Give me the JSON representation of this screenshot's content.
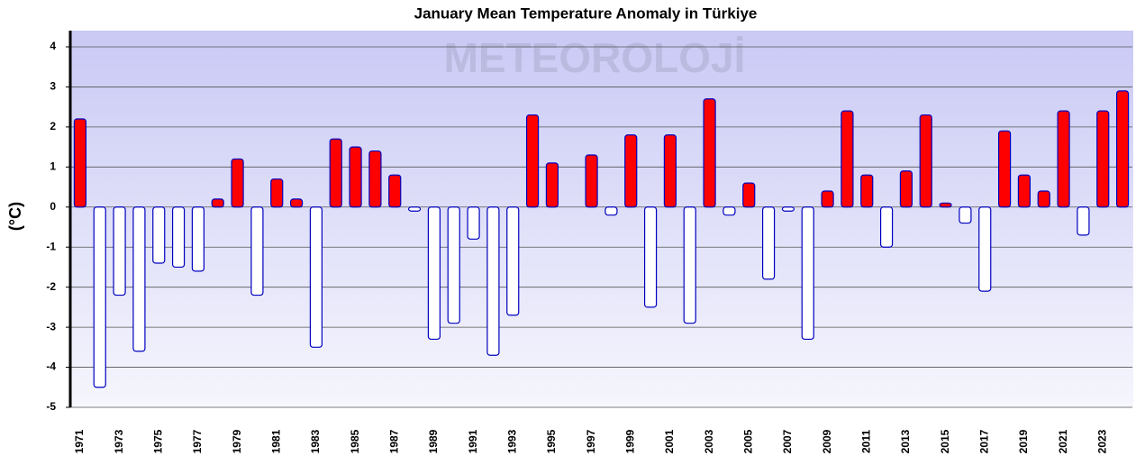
{
  "chart_data": {
    "type": "bar",
    "title": "January Mean Temperature Anomaly in Türkiye",
    "y_label": "(°C)",
    "watermark": "METEOROLOJİ",
    "categories": [
      "1971",
      null,
      "1973",
      null,
      "1975",
      null,
      "1977",
      null,
      "1979",
      null,
      "1981",
      null,
      "1983",
      null,
      "1985",
      null,
      "1987",
      null,
      "1989",
      null,
      "1991",
      null,
      "1993",
      null,
      "1995",
      null,
      "1997",
      null,
      "1999",
      null,
      "2001",
      null,
      "2003",
      null,
      "2005",
      null,
      "2007",
      null,
      "2009",
      null,
      "2011",
      null,
      "2013",
      null,
      "2015",
      null,
      "2017",
      null,
      "2019",
      null,
      "2021",
      null,
      "2023",
      null
    ],
    "values": [
      2.2,
      -4.5,
      -2.2,
      -3.6,
      -1.4,
      -1.5,
      -1.6,
      0.2,
      1.2,
      -2.2,
      0.7,
      0.2,
      -3.5,
      1.7,
      1.5,
      1.4,
      0.8,
      -0.1,
      -3.3,
      -2.9,
      -0.8,
      -3.7,
      -2.7,
      2.3,
      1.1,
      0,
      1.3,
      -0.2,
      1.8,
      -2.5,
      1.8,
      -2.9,
      2.7,
      -0.2,
      0.6,
      -1.8,
      -0.1,
      -3.3,
      0.4,
      2.4,
      0.8,
      -1.0,
      0.9,
      2.3,
      0.1,
      -0.4,
      -2.1,
      1.9,
      0.8,
      0.4,
      2.4,
      -0.7,
      2.4,
      2.9
    ],
    "color": "#ff0000",
    "negative_color": "#ffffff",
    "edge_color": "#0000c0",
    "ylim": [
      -5,
      4
    ],
    "yticks": [
      -5,
      -4,
      -3,
      -2,
      -1,
      0,
      1,
      2,
      3,
      4
    ],
    "grid": true
  }
}
